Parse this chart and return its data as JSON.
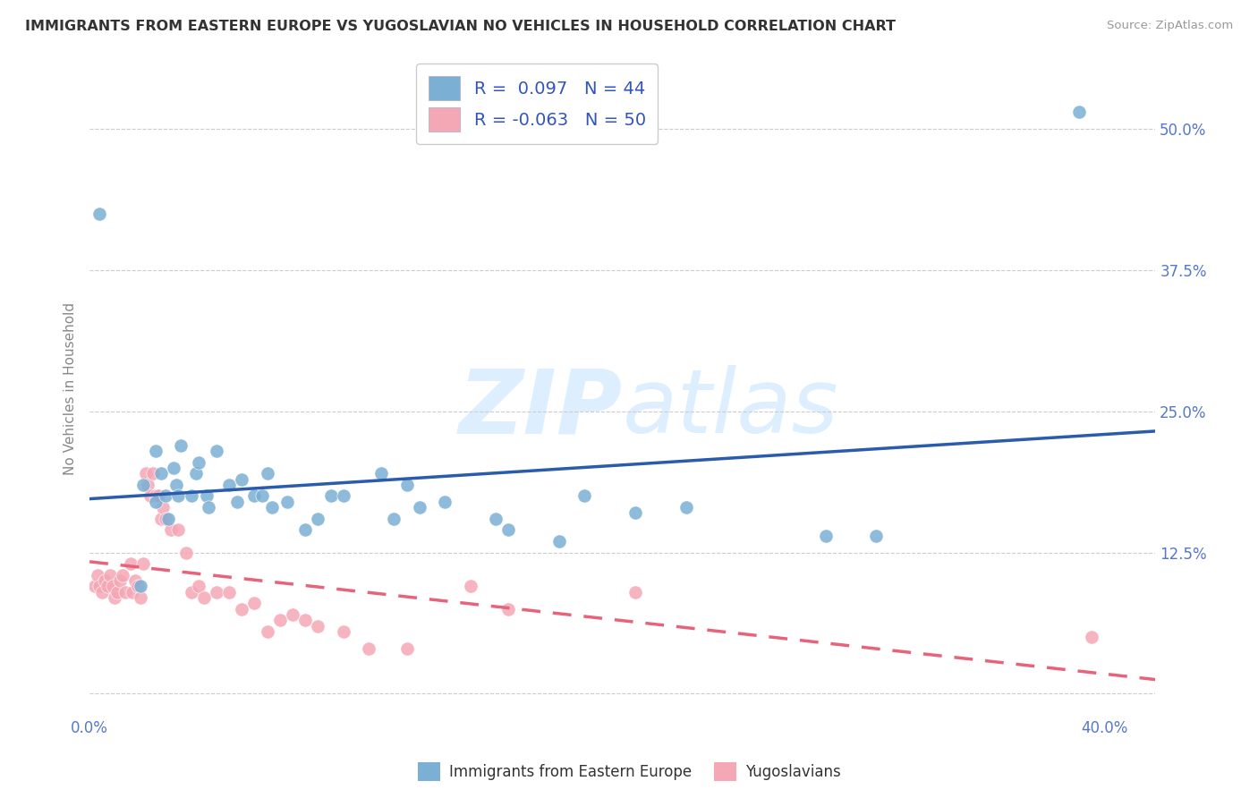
{
  "title": "IMMIGRANTS FROM EASTERN EUROPE VS YUGOSLAVIAN NO VEHICLES IN HOUSEHOLD CORRELATION CHART",
  "source": "Source: ZipAtlas.com",
  "ylabel": "No Vehicles in Household",
  "xlim": [
    0.0,
    0.42
  ],
  "ylim": [
    -0.02,
    0.56
  ],
  "x_ticks": [
    0.0,
    0.4
  ],
  "x_tick_labels": [
    "0.0%",
    "40.0%"
  ],
  "y_ticks": [
    0.0,
    0.125,
    0.25,
    0.375,
    0.5
  ],
  "y_tick_labels": [
    "",
    "12.5%",
    "25.0%",
    "37.5%",
    "50.0%"
  ],
  "blue_R": 0.097,
  "blue_N": 44,
  "pink_R": -0.063,
  "pink_N": 50,
  "legend1_label": "Immigrants from Eastern Europe",
  "legend2_label": "Yugoslavians",
  "blue_color": "#7BAFD4",
  "pink_color": "#F4A7B5",
  "blue_line_color": "#2B5BAC",
  "pink_line_color": "#E8637A",
  "scatter_blue": [
    [
      0.004,
      0.425
    ],
    [
      0.02,
      0.095
    ],
    [
      0.021,
      0.185
    ],
    [
      0.026,
      0.215
    ],
    [
      0.026,
      0.17
    ],
    [
      0.028,
      0.195
    ],
    [
      0.03,
      0.175
    ],
    [
      0.031,
      0.155
    ],
    [
      0.033,
      0.2
    ],
    [
      0.034,
      0.185
    ],
    [
      0.035,
      0.175
    ],
    [
      0.036,
      0.22
    ],
    [
      0.04,
      0.175
    ],
    [
      0.042,
      0.195
    ],
    [
      0.043,
      0.205
    ],
    [
      0.046,
      0.175
    ],
    [
      0.047,
      0.165
    ],
    [
      0.05,
      0.215
    ],
    [
      0.055,
      0.185
    ],
    [
      0.058,
      0.17
    ],
    [
      0.06,
      0.19
    ],
    [
      0.065,
      0.175
    ],
    [
      0.068,
      0.175
    ],
    [
      0.07,
      0.195
    ],
    [
      0.072,
      0.165
    ],
    [
      0.078,
      0.17
    ],
    [
      0.085,
      0.145
    ],
    [
      0.09,
      0.155
    ],
    [
      0.095,
      0.175
    ],
    [
      0.1,
      0.175
    ],
    [
      0.115,
      0.195
    ],
    [
      0.12,
      0.155
    ],
    [
      0.125,
      0.185
    ],
    [
      0.13,
      0.165
    ],
    [
      0.14,
      0.17
    ],
    [
      0.16,
      0.155
    ],
    [
      0.165,
      0.145
    ],
    [
      0.185,
      0.135
    ],
    [
      0.195,
      0.175
    ],
    [
      0.215,
      0.16
    ],
    [
      0.235,
      0.165
    ],
    [
      0.29,
      0.14
    ],
    [
      0.31,
      0.14
    ],
    [
      0.39,
      0.515
    ]
  ],
  "scatter_pink": [
    [
      0.002,
      0.095
    ],
    [
      0.003,
      0.105
    ],
    [
      0.004,
      0.095
    ],
    [
      0.005,
      0.09
    ],
    [
      0.006,
      0.1
    ],
    [
      0.007,
      0.095
    ],
    [
      0.008,
      0.105
    ],
    [
      0.009,
      0.095
    ],
    [
      0.01,
      0.085
    ],
    [
      0.011,
      0.09
    ],
    [
      0.012,
      0.1
    ],
    [
      0.013,
      0.105
    ],
    [
      0.014,
      0.09
    ],
    [
      0.016,
      0.115
    ],
    [
      0.017,
      0.09
    ],
    [
      0.018,
      0.1
    ],
    [
      0.019,
      0.095
    ],
    [
      0.02,
      0.085
    ],
    [
      0.021,
      0.115
    ],
    [
      0.022,
      0.195
    ],
    [
      0.023,
      0.185
    ],
    [
      0.024,
      0.175
    ],
    [
      0.025,
      0.195
    ],
    [
      0.026,
      0.175
    ],
    [
      0.027,
      0.175
    ],
    [
      0.028,
      0.155
    ],
    [
      0.029,
      0.165
    ],
    [
      0.03,
      0.155
    ],
    [
      0.032,
      0.145
    ],
    [
      0.035,
      0.145
    ],
    [
      0.038,
      0.125
    ],
    [
      0.04,
      0.09
    ],
    [
      0.043,
      0.095
    ],
    [
      0.045,
      0.085
    ],
    [
      0.05,
      0.09
    ],
    [
      0.055,
      0.09
    ],
    [
      0.06,
      0.075
    ],
    [
      0.065,
      0.08
    ],
    [
      0.07,
      0.055
    ],
    [
      0.075,
      0.065
    ],
    [
      0.08,
      0.07
    ],
    [
      0.085,
      0.065
    ],
    [
      0.09,
      0.06
    ],
    [
      0.1,
      0.055
    ],
    [
      0.11,
      0.04
    ],
    [
      0.125,
      0.04
    ],
    [
      0.15,
      0.095
    ],
    [
      0.165,
      0.075
    ],
    [
      0.215,
      0.09
    ],
    [
      0.395,
      0.05
    ]
  ],
  "bg_color": "#FFFFFF",
  "grid_color": "#CCCCCC",
  "title_color": "#333333",
  "axis_label_color": "#888888",
  "tick_label_color": "#5577CC",
  "legend_text_color": "#3355BB"
}
